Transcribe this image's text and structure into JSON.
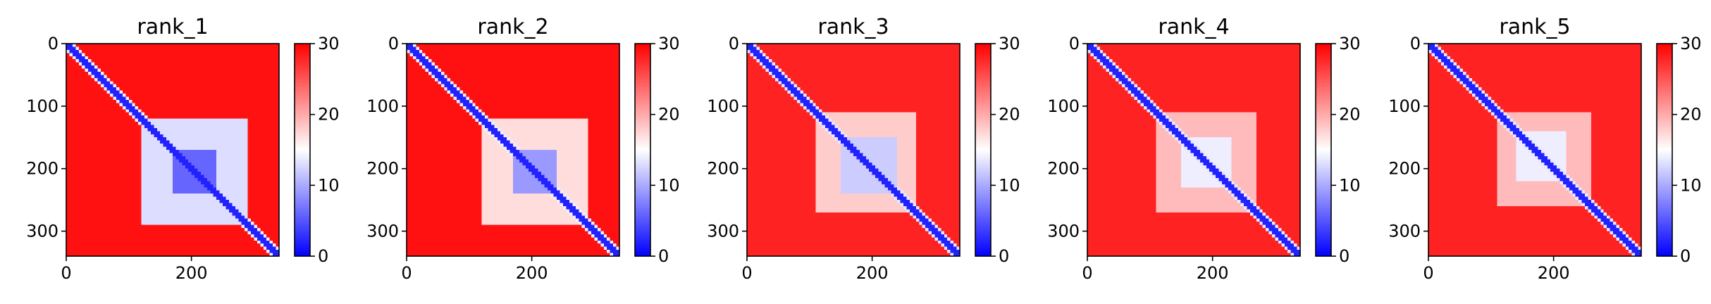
{
  "chart_data": [
    {
      "type": "heatmap",
      "title": "rank_1",
      "xlim": [
        0,
        340
      ],
      "ylim": [
        340,
        0
      ],
      "x_ticks": [
        "0",
        "200"
      ],
      "x_tick_values": [
        0,
        200
      ],
      "y_ticks": [
        "0",
        "100",
        "200",
        "300"
      ],
      "y_tick_values": [
        0,
        100,
        200,
        300
      ],
      "colorbar": {
        "range": [
          0,
          30
        ],
        "ticks": [
          "0",
          "10",
          "20",
          "30"
        ],
        "tick_values": [
          0,
          10,
          20,
          30
        ],
        "colormap": "bwr",
        "colors": [
          "#0000ff",
          "#ffffff",
          "#ff0000"
        ]
      },
      "background_value": 29,
      "diagonal": {
        "value": 2
      },
      "blocks": [
        {
          "x": [
            120,
            290
          ],
          "y": [
            120,
            290
          ],
          "value": 13
        },
        {
          "x": [
            170,
            240
          ],
          "y": [
            170,
            240
          ],
          "value": 6
        }
      ]
    },
    {
      "type": "heatmap",
      "title": "rank_2",
      "xlim": [
        0,
        340
      ],
      "ylim": [
        340,
        0
      ],
      "x_ticks": [
        "0",
        "200"
      ],
      "x_tick_values": [
        0,
        200
      ],
      "y_ticks": [
        "0",
        "100",
        "200",
        "300"
      ],
      "y_tick_values": [
        0,
        100,
        200,
        300
      ],
      "colorbar": {
        "range": [
          0,
          30
        ],
        "ticks": [
          "0",
          "10",
          "20",
          "30"
        ],
        "tick_values": [
          0,
          10,
          20,
          30
        ],
        "colormap": "bwr",
        "colors": [
          "#0000ff",
          "#ffffff",
          "#ff0000"
        ]
      },
      "background_value": 29,
      "diagonal": {
        "value": 2
      },
      "blocks": [
        {
          "x": [
            120,
            290
          ],
          "y": [
            120,
            290
          ],
          "value": 17
        },
        {
          "x": [
            170,
            240
          ],
          "y": [
            170,
            240
          ],
          "value": 9
        }
      ]
    },
    {
      "type": "heatmap",
      "title": "rank_3",
      "xlim": [
        0,
        340
      ],
      "ylim": [
        340,
        0
      ],
      "x_ticks": [
        "0",
        "200"
      ],
      "x_tick_values": [
        0,
        200
      ],
      "y_ticks": [
        "0",
        "100",
        "200",
        "300"
      ],
      "y_tick_values": [
        0,
        100,
        200,
        300
      ],
      "colorbar": {
        "range": [
          0,
          30
        ],
        "ticks": [
          "0",
          "10",
          "20",
          "30"
        ],
        "tick_values": [
          0,
          10,
          20,
          30
        ],
        "colormap": "bwr",
        "colors": [
          "#0000ff",
          "#ffffff",
          "#ff0000"
        ]
      },
      "background_value": 28,
      "diagonal": {
        "value": 2
      },
      "blocks": [
        {
          "x": [
            110,
            270
          ],
          "y": [
            110,
            270
          ],
          "value": 18
        },
        {
          "x": [
            150,
            240
          ],
          "y": [
            150,
            240
          ],
          "value": 12
        }
      ]
    },
    {
      "type": "heatmap",
      "title": "rank_4",
      "xlim": [
        0,
        340
      ],
      "ylim": [
        340,
        0
      ],
      "x_ticks": [
        "0",
        "200"
      ],
      "x_tick_values": [
        0,
        200
      ],
      "y_ticks": [
        "0",
        "100",
        "200",
        "300"
      ],
      "y_tick_values": [
        0,
        100,
        200,
        300
      ],
      "colorbar": {
        "range": [
          0,
          30
        ],
        "ticks": [
          "0",
          "10",
          "20",
          "30"
        ],
        "tick_values": [
          0,
          10,
          20,
          30
        ],
        "colormap": "bwr",
        "colors": [
          "#0000ff",
          "#ffffff",
          "#ff0000"
        ]
      },
      "background_value": 28,
      "diagonal": {
        "value": 2
      },
      "blocks": [
        {
          "x": [
            110,
            270
          ],
          "y": [
            110,
            270
          ],
          "value": 19
        },
        {
          "x": [
            150,
            230
          ],
          "y": [
            150,
            230
          ],
          "value": 14
        }
      ]
    },
    {
      "type": "heatmap",
      "title": "rank_5",
      "xlim": [
        0,
        340
      ],
      "ylim": [
        340,
        0
      ],
      "x_ticks": [
        "0",
        "200"
      ],
      "x_tick_values": [
        0,
        200
      ],
      "y_ticks": [
        "0",
        "100",
        "200",
        "300"
      ],
      "y_tick_values": [
        0,
        100,
        200,
        300
      ],
      "colorbar": {
        "range": [
          0,
          30
        ],
        "ticks": [
          "0",
          "10",
          "20",
          "30"
        ],
        "tick_values": [
          0,
          10,
          20,
          30
        ],
        "colormap": "bwr",
        "colors": [
          "#0000ff",
          "#ffffff",
          "#ff0000"
        ]
      },
      "background_value": 28,
      "diagonal": {
        "value": 2
      },
      "blocks": [
        {
          "x": [
            110,
            260
          ],
          "y": [
            110,
            260
          ],
          "value": 19
        },
        {
          "x": [
            140,
            220
          ],
          "y": [
            140,
            220
          ],
          "value": 14
        }
      ]
    }
  ]
}
